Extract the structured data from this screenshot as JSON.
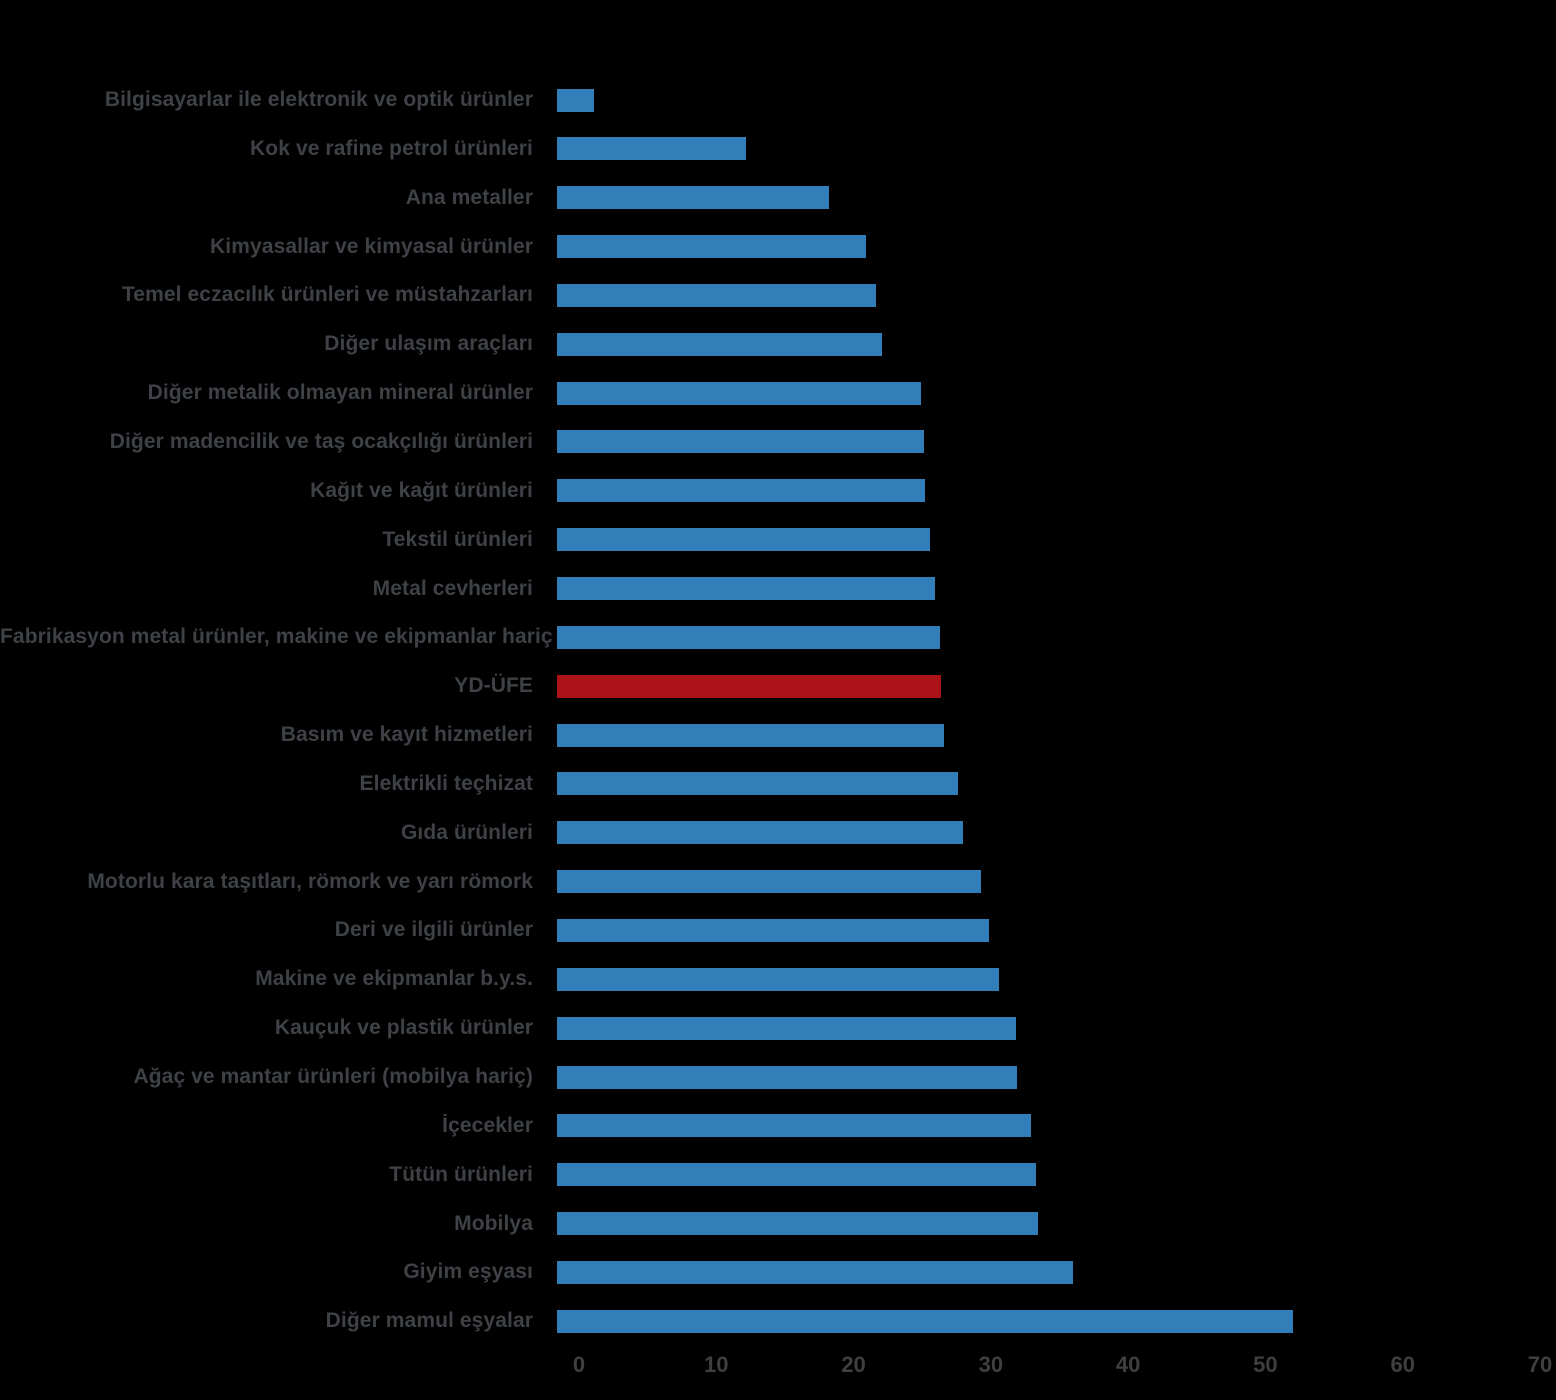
{
  "chart_data": {
    "type": "bar",
    "orientation": "horizontal",
    "title": "",
    "xlabel": "",
    "ylabel": "",
    "xlim": [
      0,
      70
    ],
    "xticks": [
      "0",
      "10",
      "20",
      "30",
      "40",
      "50",
      "60",
      "70"
    ],
    "legend": "none",
    "grid": false,
    "categories": [
      "Bilgisayarlar ile elektronik ve optik ürünler",
      "Kok ve rafine petrol ürünleri",
      "Ana metaller",
      "Kimyasallar ve kimyasal ürünler",
      "Temel eczacılık ürünleri ve müstahzarları",
      "Diğer ulaşım araçları",
      "Diğer metalik olmayan mineral ürünler",
      "Diğer madencilik ve taş ocakçılığı ürünleri",
      "Kağıt ve kağıt ürünleri",
      "Tekstil ürünleri",
      "Metal cevherleri",
      "Fabrikasyon metal ürünler, makine ve ekipmanlar hariç",
      "YD-ÜFE",
      "Basım ve kayıt hizmetleri",
      "Elektrikli teçhizat",
      "Gıda ürünleri",
      "Motorlu kara taşıtları, römork ve yarı römork",
      "Deri ve ilgili ürünler",
      "Makine ve ekipmanlar b.y.s.",
      "Kauçuk ve plastik ürünler",
      "Ağaç ve mantar ürünleri (mobilya hariç)",
      "İçecekler",
      "Tütün ürünleri",
      "Mobilya",
      "Giyim eşyası",
      "Diğer mamul eşyalar"
    ],
    "values": [
      2.7,
      13.8,
      19.8,
      22.5,
      23.2,
      23.7,
      26.5,
      26.7,
      26.8,
      27.2,
      27.5,
      27.9,
      28.0,
      28.2,
      29.2,
      29.6,
      30.9,
      31.5,
      32.2,
      33.4,
      33.5,
      34.5,
      34.9,
      35.0,
      37.6,
      53.6
    ],
    "highlight_category": "YD-ÜFE",
    "colors": {
      "bar": "#317EB8",
      "highlight_bar": "#AC1318",
      "category_label": "#3E4145",
      "tick_label": "#3F3F3F",
      "background": "#000000"
    }
  }
}
